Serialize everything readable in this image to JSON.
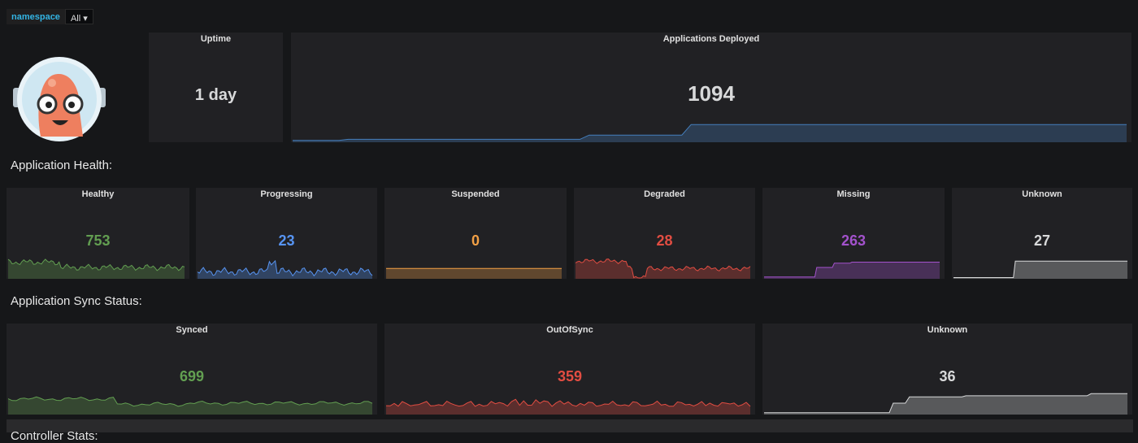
{
  "variables": [
    {
      "label": "namespace",
      "value": "All"
    }
  ],
  "top_panels": [
    {
      "title": "Uptime",
      "value": "1 day",
      "color": "#d8d9da"
    },
    {
      "title": "Applications Deployed",
      "value": 1094,
      "color": "#d8d9da",
      "line": "#447ebc"
    }
  ],
  "sections": [
    {
      "title": "Application Health:",
      "panels": [
        {
          "title": "Healthy",
          "value": 753,
          "color": "#629e51"
        },
        {
          "title": "Progressing",
          "value": 23,
          "color": "#5794f2"
        },
        {
          "title": "Suspended",
          "value": 0,
          "color": "#f2a045"
        },
        {
          "title": "Degraded",
          "value": 28,
          "color": "#e24d42"
        },
        {
          "title": "Missing",
          "value": 263,
          "color": "#a352cc"
        },
        {
          "title": "Unknown",
          "value": 27,
          "color": "#d8d9da"
        }
      ]
    },
    {
      "title": "Application Sync Status:",
      "panels": [
        {
          "title": "Synced",
          "value": 699,
          "color": "#629e51"
        },
        {
          "title": "OutOfSync",
          "value": 359,
          "color": "#e24d42"
        },
        {
          "title": "Unknown",
          "value": 36,
          "color": "#d8d9da"
        }
      ]
    },
    {
      "title": "Controller Stats:"
    }
  ]
}
